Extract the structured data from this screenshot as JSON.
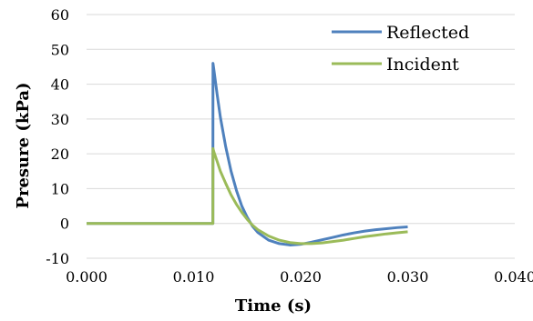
{
  "chart_data": {
    "type": "line",
    "title": "",
    "xlabel": "Time (s)",
    "ylabel": "Presure (kPa)",
    "xlim": [
      0.0,
      0.04
    ],
    "ylim": [
      -10,
      60
    ],
    "x_ticks": [
      0.0,
      0.01,
      0.02,
      0.03,
      0.04
    ],
    "x_tick_labels": [
      "0.000",
      "0.010",
      "0.020",
      "0.030",
      "0.040"
    ],
    "y_ticks": [
      -10,
      0,
      10,
      20,
      30,
      40,
      50,
      60
    ],
    "y_tick_labels": [
      "-10",
      "0",
      "10",
      "20",
      "30",
      "40",
      "50",
      "60"
    ],
    "grid": "horizontal",
    "legend_position": "top-right",
    "series": [
      {
        "name": "Reflected",
        "color": "#4F81BD",
        "x": [
          0.0,
          0.0118,
          0.01181,
          0.0119,
          0.0122,
          0.0125,
          0.013,
          0.0135,
          0.014,
          0.0145,
          0.015,
          0.0155,
          0.016,
          0.017,
          0.018,
          0.019,
          0.02,
          0.021,
          0.022,
          0.023,
          0.024,
          0.025,
          0.026,
          0.027,
          0.028,
          0.029,
          0.03
        ],
        "y": [
          0,
          0,
          46,
          44,
          37,
          30.5,
          22,
          15,
          9.5,
          5,
          1.8,
          -0.8,
          -2.6,
          -4.8,
          -5.8,
          -6.2,
          -6.0,
          -5.4,
          -4.7,
          -4.0,
          -3.3,
          -2.7,
          -2.2,
          -1.8,
          -1.5,
          -1.2,
          -1.0
        ]
      },
      {
        "name": "Incident",
        "color": "#9BBB59",
        "x": [
          0.0,
          0.0118,
          0.01181,
          0.0119,
          0.0122,
          0.0125,
          0.013,
          0.0135,
          0.014,
          0.0145,
          0.015,
          0.0155,
          0.016,
          0.017,
          0.018,
          0.019,
          0.02,
          0.021,
          0.022,
          0.023,
          0.024,
          0.025,
          0.026,
          0.027,
          0.028,
          0.029,
          0.03
        ],
        "y": [
          0,
          0,
          21.5,
          20.5,
          17.8,
          15,
          11.5,
          8.2,
          5.5,
          3.2,
          1.2,
          -0.5,
          -1.8,
          -3.6,
          -4.8,
          -5.5,
          -5.8,
          -5.8,
          -5.6,
          -5.2,
          -4.8,
          -4.3,
          -3.8,
          -3.4,
          -3.0,
          -2.7,
          -2.4
        ]
      }
    ]
  }
}
